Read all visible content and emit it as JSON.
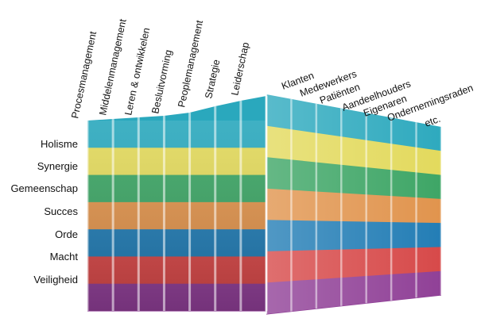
{
  "levels": [
    {
      "label": "Holisme",
      "color": "#2aa8bd"
    },
    {
      "label": "Synergie",
      "color": "#e2d95a"
    },
    {
      "label": "Gemeenschap",
      "color": "#3aa463"
    },
    {
      "label": "Succes",
      "color": "#e0924a"
    },
    {
      "label": "Orde",
      "color": "#1f7bb4"
    },
    {
      "label": "Macht",
      "color": "#d64646"
    },
    {
      "label": "Veiligheid",
      "color": "#8e3d95"
    }
  ],
  "front_columns": [
    "Procesmanagement",
    "Middelenmanagement",
    "Leren & ontwikkelen",
    "Besluitvorming",
    "Peoplemanagement",
    "Strategie",
    "Leiderschap"
  ],
  "side_columns": [
    "Klanten",
    "Medewerkers",
    "Patiënten",
    "Aandeelhouders",
    "Eigenaren",
    "Ondernemingsraden",
    "etc."
  ]
}
